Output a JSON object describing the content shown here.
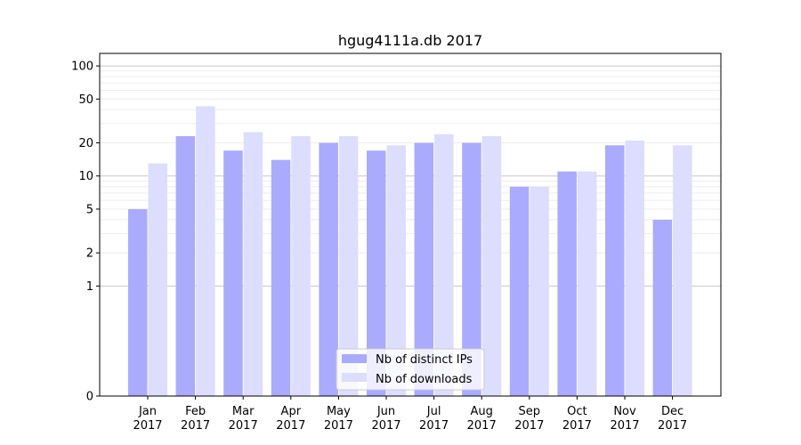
{
  "chart_data": {
    "type": "bar",
    "title": "hgug4111a.db 2017",
    "xlabel": "",
    "ylabel": "",
    "yscale": "symlog",
    "ylim": [
      0,
      130
    ],
    "yticks": [
      0,
      1,
      2,
      5,
      10,
      20,
      50,
      100
    ],
    "ytick_labels": [
      "0",
      "1",
      "2",
      "5",
      "10",
      "20",
      "50",
      "100"
    ],
    "grid": true,
    "legend_position": "bottom-center",
    "categories": [
      {
        "month": "Jan",
        "year": "2017"
      },
      {
        "month": "Feb",
        "year": "2017"
      },
      {
        "month": "Mar",
        "year": "2017"
      },
      {
        "month": "Apr",
        "year": "2017"
      },
      {
        "month": "May",
        "year": "2017"
      },
      {
        "month": "Jun",
        "year": "2017"
      },
      {
        "month": "Jul",
        "year": "2017"
      },
      {
        "month": "Aug",
        "year": "2017"
      },
      {
        "month": "Sep",
        "year": "2017"
      },
      {
        "month": "Oct",
        "year": "2017"
      },
      {
        "month": "Nov",
        "year": "2017"
      },
      {
        "month": "Dec",
        "year": "2017"
      }
    ],
    "series": [
      {
        "name": "Nb of distinct IPs",
        "color": "#aaaaff",
        "values": [
          5,
          23,
          17,
          14,
          20,
          17,
          20,
          20,
          8,
          11,
          19,
          4
        ]
      },
      {
        "name": "Nb of downloads",
        "color": "#ddddff",
        "values": [
          13,
          43,
          25,
          23,
          23,
          19,
          24,
          23,
          8,
          11,
          21,
          19
        ]
      }
    ]
  }
}
